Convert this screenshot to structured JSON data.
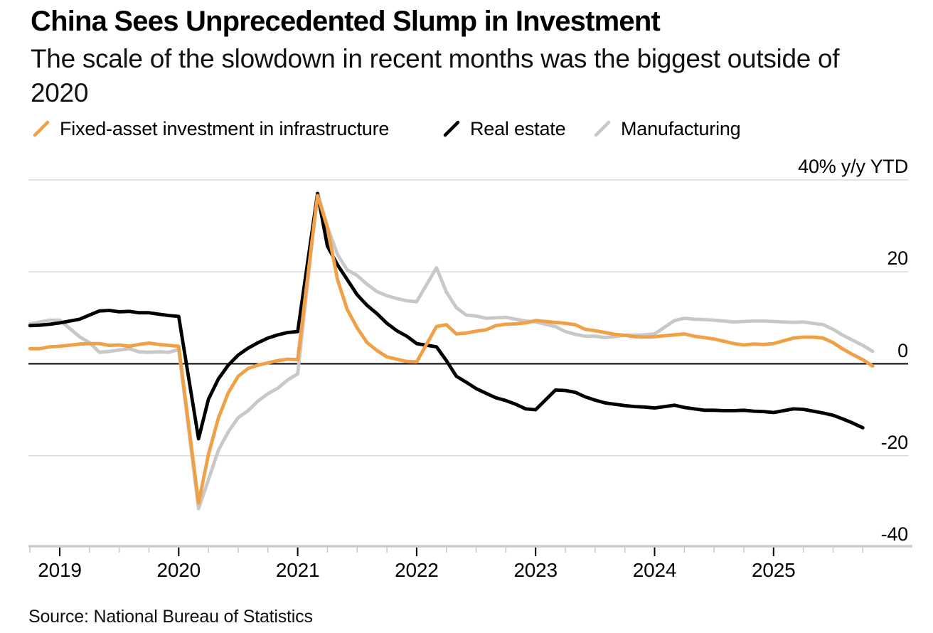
{
  "header": {
    "title": "China Sees Unprecedented Slump in Investment",
    "subtitle_lines": [
      "The scale of the slowdown in recent months was the biggest outside of",
      "2020"
    ]
  },
  "legend": {
    "items": [
      {
        "label": "Fixed-asset investment in infrastructure",
        "color": "#F0A046"
      },
      {
        "label": "Real estate",
        "color": "#000000"
      },
      {
        "label": "Manufacturing",
        "color": "#C8C8C8"
      }
    ]
  },
  "source": {
    "text": "Source: National Bureau of Statistics"
  },
  "chart_data": {
    "type": "line",
    "title": "China Sees Unprecedented Slump in Investment",
    "unit": "% y/y YTD",
    "grid": "horizontal",
    "legend_position": "top",
    "y_axis": {
      "range": [
        -40,
        40
      ],
      "ticks": [
        {
          "value": 40,
          "label": "40% y/y YTD"
        },
        {
          "value": 20,
          "label": "20"
        },
        {
          "value": 0,
          "label": "0"
        },
        {
          "value": -20,
          "label": "-20"
        },
        {
          "value": -40,
          "label": "-40"
        }
      ]
    },
    "x_axis": {
      "years": [
        2019,
        2020,
        2021,
        2022,
        2023,
        2024,
        2025
      ],
      "minor_tick_interval_years": 0.25,
      "range": [
        "2018-09",
        "2025-10"
      ]
    },
    "series": [
      {
        "name": "Fixed-asset investment in infrastructure",
        "color": "#F0A046",
        "data": [
          [
            "2018-09",
            3.3
          ],
          [
            "2018-10",
            3.3
          ],
          [
            "2018-11",
            3.7
          ],
          [
            "2018-12",
            3.8
          ],
          [
            "2019-02",
            4.3
          ],
          [
            "2019-03",
            4.4
          ],
          [
            "2019-04",
            4.4
          ],
          [
            "2019-05",
            4.0
          ],
          [
            "2019-06",
            4.1
          ],
          [
            "2019-07",
            3.8
          ],
          [
            "2019-08",
            4.2
          ],
          [
            "2019-09",
            4.5
          ],
          [
            "2019-10",
            4.2
          ],
          [
            "2019-11",
            4.0
          ],
          [
            "2019-12",
            3.8
          ],
          [
            "2020-02",
            -30.3
          ],
          [
            "2020-03",
            -19.7
          ],
          [
            "2020-04",
            -11.8
          ],
          [
            "2020-05",
            -6.3
          ],
          [
            "2020-06",
            -2.7
          ],
          [
            "2020-07",
            -1.0
          ],
          [
            "2020-08",
            -0.3
          ],
          [
            "2020-09",
            0.2
          ],
          [
            "2020-10",
            0.7
          ],
          [
            "2020-11",
            1.0
          ],
          [
            "2020-12",
            0.9
          ],
          [
            "2021-02",
            36.6
          ],
          [
            "2021-03",
            29.7
          ],
          [
            "2021-04",
            18.4
          ],
          [
            "2021-05",
            11.8
          ],
          [
            "2021-06",
            7.8
          ],
          [
            "2021-07",
            4.6
          ],
          [
            "2021-08",
            2.9
          ],
          [
            "2021-09",
            1.5
          ],
          [
            "2021-10",
            1.0
          ],
          [
            "2021-11",
            0.5
          ],
          [
            "2021-12",
            0.4
          ],
          [
            "2022-02",
            8.1
          ],
          [
            "2022-03",
            8.5
          ],
          [
            "2022-04",
            6.5
          ],
          [
            "2022-05",
            6.7
          ],
          [
            "2022-06",
            7.1
          ],
          [
            "2022-07",
            7.4
          ],
          [
            "2022-08",
            8.3
          ],
          [
            "2022-09",
            8.6
          ],
          [
            "2022-10",
            8.7
          ],
          [
            "2022-11",
            8.9
          ],
          [
            "2022-12",
            9.4
          ],
          [
            "2023-02",
            9.0
          ],
          [
            "2023-03",
            8.8
          ],
          [
            "2023-04",
            8.5
          ],
          [
            "2023-05",
            7.5
          ],
          [
            "2023-06",
            7.2
          ],
          [
            "2023-07",
            6.8
          ],
          [
            "2023-08",
            6.4
          ],
          [
            "2023-09",
            6.2
          ],
          [
            "2023-10",
            5.9
          ],
          [
            "2023-11",
            5.8
          ],
          [
            "2023-12",
            5.9
          ],
          [
            "2024-02",
            6.3
          ],
          [
            "2024-03",
            6.5
          ],
          [
            "2024-04",
            6.0
          ],
          [
            "2024-05",
            5.7
          ],
          [
            "2024-06",
            5.4
          ],
          [
            "2024-07",
            4.9
          ],
          [
            "2024-08",
            4.4
          ],
          [
            "2024-09",
            4.1
          ],
          [
            "2024-10",
            4.3
          ],
          [
            "2024-11",
            4.2
          ],
          [
            "2024-12",
            4.4
          ],
          [
            "2025-02",
            5.6
          ],
          [
            "2025-03",
            5.8
          ],
          [
            "2025-04",
            5.8
          ],
          [
            "2025-05",
            5.6
          ],
          [
            "2025-06",
            4.6
          ],
          [
            "2025-07",
            3.2
          ],
          [
            "2025-08",
            2.0
          ],
          [
            "2025-09",
            0.9
          ],
          [
            "2025-10",
            -0.5
          ]
        ]
      },
      {
        "name": "Real estate",
        "color": "#000000",
        "data": [
          [
            "2018-09",
            8.3
          ],
          [
            "2018-10",
            8.4
          ],
          [
            "2018-11",
            8.6
          ],
          [
            "2018-12",
            8.9
          ],
          [
            "2019-02",
            9.7
          ],
          [
            "2019-03",
            10.6
          ],
          [
            "2019-04",
            11.5
          ],
          [
            "2019-05",
            11.6
          ],
          [
            "2019-06",
            11.3
          ],
          [
            "2019-07",
            11.4
          ],
          [
            "2019-08",
            11.1
          ],
          [
            "2019-09",
            11.1
          ],
          [
            "2019-10",
            10.8
          ],
          [
            "2019-11",
            10.5
          ],
          [
            "2019-12",
            10.3
          ],
          [
            "2020-02",
            -16.3
          ],
          [
            "2020-03",
            -7.7
          ],
          [
            "2020-04",
            -3.3
          ],
          [
            "2020-05",
            -0.3
          ],
          [
            "2020-06",
            1.9
          ],
          [
            "2020-07",
            3.4
          ],
          [
            "2020-08",
            4.6
          ],
          [
            "2020-09",
            5.6
          ],
          [
            "2020-10",
            6.3
          ],
          [
            "2020-11",
            6.8
          ],
          [
            "2020-12",
            7.0
          ],
          [
            "2021-02",
            37.0
          ],
          [
            "2021-03",
            25.6
          ],
          [
            "2021-04",
            21.6
          ],
          [
            "2021-05",
            18.3
          ],
          [
            "2021-06",
            15.0
          ],
          [
            "2021-07",
            12.7
          ],
          [
            "2021-08",
            10.9
          ],
          [
            "2021-09",
            8.8
          ],
          [
            "2021-10",
            7.2
          ],
          [
            "2021-11",
            6.0
          ],
          [
            "2021-12",
            4.4
          ],
          [
            "2022-02",
            3.7
          ],
          [
            "2022-03",
            0.7
          ],
          [
            "2022-04",
            -2.7
          ],
          [
            "2022-05",
            -4.0
          ],
          [
            "2022-06",
            -5.4
          ],
          [
            "2022-07",
            -6.4
          ],
          [
            "2022-08",
            -7.4
          ],
          [
            "2022-09",
            -8.0
          ],
          [
            "2022-10",
            -8.8
          ],
          [
            "2022-11",
            -9.8
          ],
          [
            "2022-12",
            -10.0
          ],
          [
            "2023-02",
            -5.7
          ],
          [
            "2023-03",
            -5.8
          ],
          [
            "2023-04",
            -6.2
          ],
          [
            "2023-05",
            -7.2
          ],
          [
            "2023-06",
            -7.9
          ],
          [
            "2023-07",
            -8.5
          ],
          [
            "2023-08",
            -8.8
          ],
          [
            "2023-09",
            -9.1
          ],
          [
            "2023-10",
            -9.3
          ],
          [
            "2023-11",
            -9.4
          ],
          [
            "2023-12",
            -9.6
          ],
          [
            "2024-02",
            -9.0
          ],
          [
            "2024-03",
            -9.5
          ],
          [
            "2024-04",
            -9.8
          ],
          [
            "2024-05",
            -10.1
          ],
          [
            "2024-06",
            -10.1
          ],
          [
            "2024-07",
            -10.2
          ],
          [
            "2024-08",
            -10.2
          ],
          [
            "2024-09",
            -10.1
          ],
          [
            "2024-10",
            -10.3
          ],
          [
            "2024-11",
            -10.4
          ],
          [
            "2024-12",
            -10.6
          ],
          [
            "2025-02",
            -9.8
          ],
          [
            "2025-03",
            -9.9
          ],
          [
            "2025-04",
            -10.3
          ],
          [
            "2025-05",
            -10.7
          ],
          [
            "2025-06",
            -11.2
          ],
          [
            "2025-07",
            -12.0
          ],
          [
            "2025-08",
            -12.9
          ],
          [
            "2025-09",
            -13.9
          ]
        ]
      },
      {
        "name": "Manufacturing",
        "color": "#C8C8C8",
        "data": [
          [
            "2018-09",
            8.7
          ],
          [
            "2018-10",
            9.1
          ],
          [
            "2018-11",
            9.5
          ],
          [
            "2018-12",
            9.5
          ],
          [
            "2019-02",
            5.9
          ],
          [
            "2019-03",
            4.6
          ],
          [
            "2019-04",
            2.5
          ],
          [
            "2019-05",
            2.7
          ],
          [
            "2019-06",
            3.0
          ],
          [
            "2019-07",
            3.3
          ],
          [
            "2019-08",
            2.6
          ],
          [
            "2019-09",
            2.5
          ],
          [
            "2019-10",
            2.6
          ],
          [
            "2019-11",
            2.5
          ],
          [
            "2019-12",
            3.1
          ],
          [
            "2020-02",
            -31.5
          ],
          [
            "2020-03",
            -25.2
          ],
          [
            "2020-04",
            -18.8
          ],
          [
            "2020-05",
            -14.8
          ],
          [
            "2020-06",
            -11.7
          ],
          [
            "2020-07",
            -10.2
          ],
          [
            "2020-08",
            -8.1
          ],
          [
            "2020-09",
            -6.5
          ],
          [
            "2020-10",
            -5.3
          ],
          [
            "2020-11",
            -3.5
          ],
          [
            "2020-12",
            -2.2
          ],
          [
            "2021-02",
            37.3
          ],
          [
            "2021-03",
            29.8
          ],
          [
            "2021-04",
            23.8
          ],
          [
            "2021-05",
            20.4
          ],
          [
            "2021-06",
            19.2
          ],
          [
            "2021-07",
            17.3
          ],
          [
            "2021-08",
            15.7
          ],
          [
            "2021-09",
            14.8
          ],
          [
            "2021-10",
            14.2
          ],
          [
            "2021-11",
            13.7
          ],
          [
            "2021-12",
            13.5
          ],
          [
            "2022-02",
            20.9
          ],
          [
            "2022-03",
            15.6
          ],
          [
            "2022-04",
            12.2
          ],
          [
            "2022-05",
            10.6
          ],
          [
            "2022-06",
            10.4
          ],
          [
            "2022-07",
            9.9
          ],
          [
            "2022-08",
            10.0
          ],
          [
            "2022-09",
            10.1
          ],
          [
            "2022-10",
            9.7
          ],
          [
            "2022-11",
            9.3
          ],
          [
            "2022-12",
            9.1
          ],
          [
            "2023-02",
            8.1
          ],
          [
            "2023-03",
            7.0
          ],
          [
            "2023-04",
            6.4
          ],
          [
            "2023-05",
            6.0
          ],
          [
            "2023-06",
            6.0
          ],
          [
            "2023-07",
            5.7
          ],
          [
            "2023-08",
            5.9
          ],
          [
            "2023-09",
            6.2
          ],
          [
            "2023-10",
            6.2
          ],
          [
            "2023-11",
            6.3
          ],
          [
            "2023-12",
            6.5
          ],
          [
            "2024-02",
            9.4
          ],
          [
            "2024-03",
            9.9
          ],
          [
            "2024-04",
            9.7
          ],
          [
            "2024-05",
            9.6
          ],
          [
            "2024-06",
            9.5
          ],
          [
            "2024-07",
            9.3
          ],
          [
            "2024-08",
            9.1
          ],
          [
            "2024-09",
            9.2
          ],
          [
            "2024-10",
            9.3
          ],
          [
            "2024-11",
            9.3
          ],
          [
            "2024-12",
            9.2
          ],
          [
            "2025-02",
            9.0
          ],
          [
            "2025-03",
            9.1
          ],
          [
            "2025-04",
            8.8
          ],
          [
            "2025-05",
            8.5
          ],
          [
            "2025-06",
            7.5
          ],
          [
            "2025-07",
            6.2
          ],
          [
            "2025-08",
            5.1
          ],
          [
            "2025-09",
            4.0
          ],
          [
            "2025-10",
            2.7
          ]
        ]
      }
    ]
  }
}
